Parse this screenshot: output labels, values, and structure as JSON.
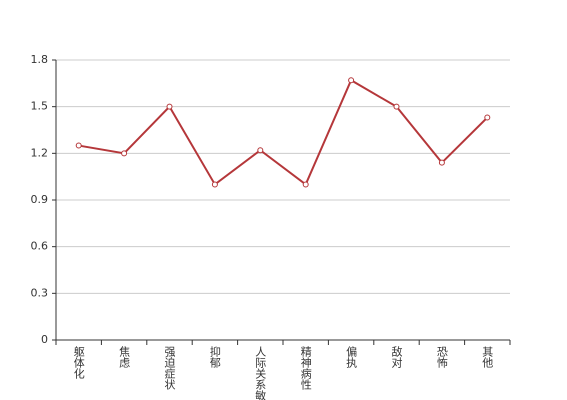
{
  "chart_data": {
    "type": "line",
    "categories": [
      "躯体化",
      "焦虑",
      "强迫症状",
      "抑郁",
      "人际关系敏感",
      "精神病性",
      "偏执",
      "敌对",
      "恐怖",
      "其他"
    ],
    "series": [
      {
        "color": "#b5373a",
        "values": [
          1.25,
          1.2,
          1.5,
          1.0,
          1.22,
          1.0,
          1.67,
          1.5,
          1.14,
          1.43
        ]
      }
    ],
    "ylim": [
      0,
      1.8
    ],
    "yticks": [
      0,
      0.3,
      0.6,
      0.9,
      1.2,
      1.5,
      1.8
    ],
    "grid": true
  }
}
